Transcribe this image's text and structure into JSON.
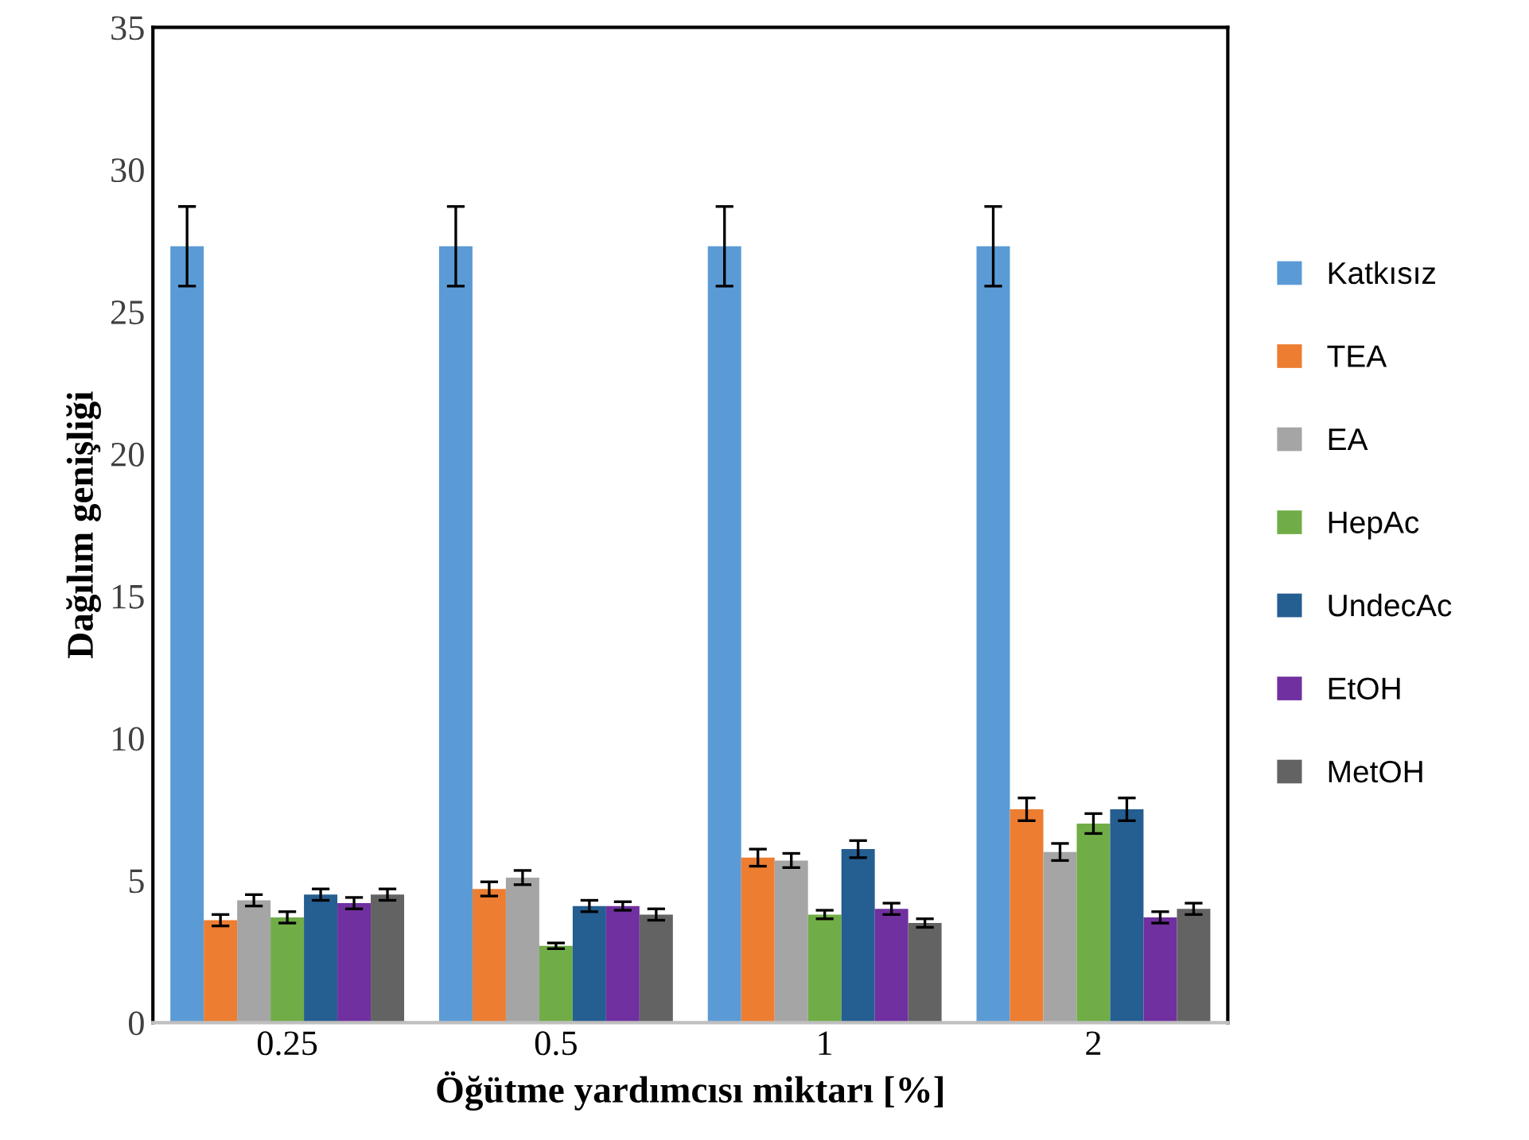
{
  "chart_data": {
    "type": "bar",
    "xlabel": "Öğütme yardımcısı miktarı [%]",
    "ylabel": "Dağılım genişliği",
    "categories": [
      "0.25",
      "0.5",
      "1",
      "2"
    ],
    "ylim": [
      0,
      35
    ],
    "yticks": [
      0,
      5,
      10,
      15,
      20,
      25,
      30,
      35
    ],
    "grid": false,
    "legend": "right",
    "series": [
      {
        "name": "Katkısız",
        "color": "#5b9bd5",
        "values": [
          27.3,
          27.3,
          27.3,
          27.3
        ],
        "errors": [
          1.4,
          1.4,
          1.4,
          1.4
        ]
      },
      {
        "name": "TEA",
        "color": "#ed7d31",
        "values": [
          3.6,
          4.7,
          5.8,
          7.5
        ],
        "errors": [
          0.2,
          0.25,
          0.3,
          0.4
        ]
      },
      {
        "name": "EA",
        "color": "#a5a5a5",
        "values": [
          4.3,
          5.1,
          5.7,
          6.0
        ],
        "errors": [
          0.2,
          0.25,
          0.25,
          0.3
        ]
      },
      {
        "name": "HepAc",
        "color": "#70ad47",
        "values": [
          3.7,
          2.7,
          3.8,
          7.0
        ],
        "errors": [
          0.2,
          0.1,
          0.15,
          0.35
        ]
      },
      {
        "name": "UndecAc",
        "color": "#255e91",
        "values": [
          4.5,
          4.1,
          6.1,
          7.5
        ],
        "errors": [
          0.2,
          0.2,
          0.3,
          0.4
        ]
      },
      {
        "name": "EtOH",
        "color": "#7030a0",
        "values": [
          4.2,
          4.1,
          4.0,
          3.7
        ],
        "errors": [
          0.2,
          0.15,
          0.2,
          0.2
        ]
      },
      {
        "name": "MetOH",
        "color": "#636363",
        "values": [
          4.5,
          3.8,
          3.5,
          4.0
        ],
        "errors": [
          0.2,
          0.2,
          0.15,
          0.2
        ]
      }
    ]
  }
}
